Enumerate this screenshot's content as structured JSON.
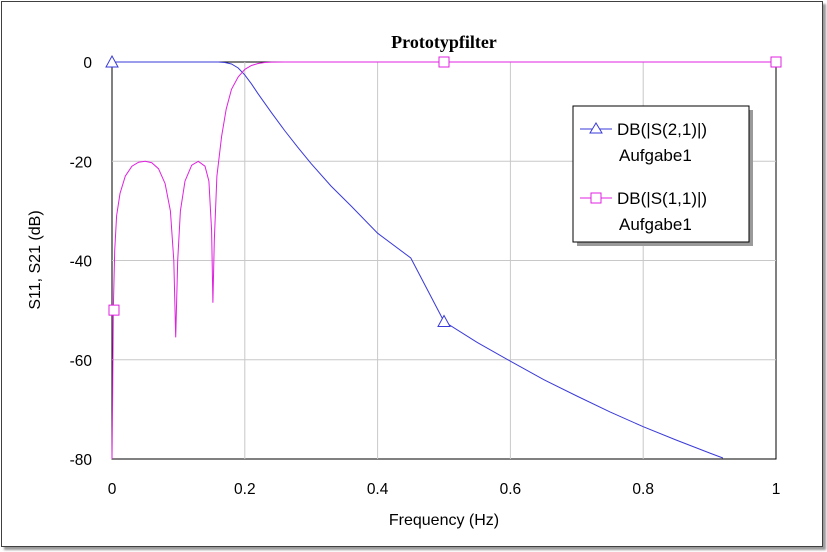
{
  "chart_data": {
    "type": "line",
    "title": "Prototypfilter",
    "xlabel": "Frequency (Hz)",
    "ylabel": "S11, S21 (dB)",
    "xlim": [
      0,
      1
    ],
    "ylim": [
      -80,
      0
    ],
    "x_ticks": [
      0,
      0.2,
      0.4,
      0.6,
      0.8,
      1
    ],
    "x_tick_labels": [
      "0",
      "0.2",
      "0.4",
      "0.6",
      "0.8",
      "1"
    ],
    "y_ticks": [
      0,
      -20,
      -40,
      -60,
      -80
    ],
    "y_tick_labels": [
      "0",
      "-20",
      "-40",
      "-60",
      "-80"
    ],
    "grid": true,
    "legend_position": "top-right",
    "series": [
      {
        "name": "DB(|S(2,1)|)",
        "name2": "Aufgabe1",
        "color": "#3a3ad8",
        "marker": "triangle",
        "x": [
          0,
          0.1,
          0.15,
          0.16,
          0.17,
          0.18,
          0.19,
          0.2,
          0.21,
          0.22,
          0.24,
          0.26,
          0.28,
          0.3,
          0.33,
          0.36,
          0.4,
          0.45,
          0.5,
          0.55,
          0.6,
          0.65,
          0.7,
          0.75,
          0.8,
          0.85,
          0.9,
          0.92
        ],
        "y": [
          0,
          0,
          0,
          0,
          -0.1,
          -0.4,
          -1.2,
          -2.6,
          -4.4,
          -6.4,
          -10.2,
          -13.8,
          -17.2,
          -20.5,
          -25,
          -29,
          -34.5,
          -39.5,
          -52.3,
          -56.5,
          -60.3,
          -64,
          -67.3,
          -70.5,
          -73.5,
          -76.2,
          -78.8,
          -79.8
        ],
        "marker_points": [
          {
            "x": 0,
            "y": 0
          },
          {
            "x": 0.5,
            "y": -52.3
          }
        ]
      },
      {
        "name": "DB(|S(1,1)|)",
        "name2": "Aufgabe1",
        "color": "#e020e0",
        "marker": "square",
        "x": [
          0,
          0.001,
          0.002,
          0.004,
          0.007,
          0.012,
          0.02,
          0.03,
          0.04,
          0.05,
          0.06,
          0.07,
          0.08,
          0.088,
          0.093,
          0.096,
          0.099,
          0.103,
          0.11,
          0.12,
          0.13,
          0.14,
          0.146,
          0.15,
          0.152,
          0.154,
          0.158,
          0.165,
          0.172,
          0.18,
          0.19,
          0.2,
          0.21,
          0.22,
          0.23,
          0.24,
          0.26,
          0.3,
          0.5,
          0.8,
          1
        ],
        "y": [
          -80,
          -66,
          -50,
          -38,
          -31,
          -26.5,
          -23,
          -21,
          -20.2,
          -20,
          -20.3,
          -21.5,
          -24.5,
          -30,
          -40,
          -55.5,
          -40,
          -30,
          -24,
          -20.8,
          -20,
          -21,
          -24,
          -34,
          -48.5,
          -36,
          -23,
          -15,
          -9.5,
          -5.5,
          -3,
          -1.5,
          -0.7,
          -0.3,
          -0.1,
          -0.03,
          0,
          0,
          0,
          0,
          0
        ],
        "marker_points": [
          {
            "x": 0.003,
            "y": -50
          },
          {
            "x": 0.5,
            "y": 0
          },
          {
            "x": 1,
            "y": 0
          }
        ]
      }
    ]
  }
}
